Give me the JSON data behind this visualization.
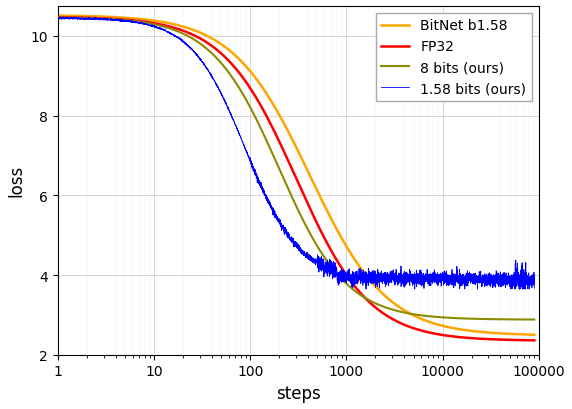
{
  "xlabel": "steps",
  "ylabel": "loss",
  "xlim": [
    1,
    100000
  ],
  "ylim": [
    2,
    10.75
  ],
  "yticks": [
    2,
    4,
    6,
    8,
    10
  ],
  "legend": [
    "FP32",
    "BitNet b1.58",
    "1.58 bits (ours)",
    "8 bits (ours)"
  ],
  "colors": {
    "fp32": "#FF0000",
    "bitnet": "#FFA500",
    "ours_158": "#0000FF",
    "ours_8": "#8B8B00"
  },
  "line_widths": {
    "fp32": 1.8,
    "bitnet": 1.8,
    "ours_158": 0.6,
    "ours_8": 1.5
  }
}
